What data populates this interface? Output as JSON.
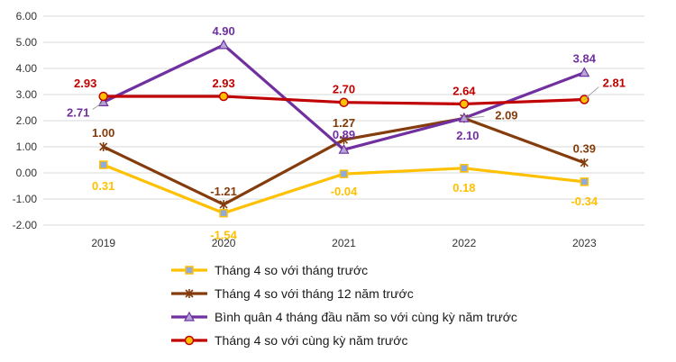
{
  "chart_data": {
    "type": "line",
    "categories": [
      "2019",
      "2020",
      "2021",
      "2022",
      "2023"
    ],
    "ylim": [
      -2,
      6
    ],
    "yticks": [
      "-2.00",
      "-1.00",
      "0.00",
      "1.00",
      "2.00",
      "3.00",
      "4.00",
      "5.00",
      "6.00"
    ],
    "grid": true,
    "legend_position": "bottom",
    "series": [
      {
        "name": "Tháng 4 so với tháng trước",
        "values": [
          0.31,
          -1.54,
          -0.04,
          0.18,
          -0.34
        ],
        "labels": [
          "0.31",
          "-1.54",
          "-0.04",
          "0.18",
          "-0.34"
        ],
        "color": "#FFC000",
        "label_color": "#FFC000",
        "marker": "square"
      },
      {
        "name": "Tháng 4 so với tháng 12 năm trước",
        "values": [
          1.0,
          -1.21,
          1.27,
          2.09,
          0.39
        ],
        "labels": [
          "1.00",
          "-1.21",
          "1.27",
          "2.09",
          "0.39"
        ],
        "color": "#843C0C",
        "label_color": "#843C0C",
        "marker": "star"
      },
      {
        "name": "Bình quân 4 tháng đầu năm so với cùng kỳ năm trước",
        "values": [
          2.71,
          4.9,
          0.89,
          2.1,
          3.84
        ],
        "labels": [
          "2.71",
          "4.90",
          "0.89",
          "2.10",
          "3.84"
        ],
        "color": "#7030A0",
        "label_color": "#7030A0",
        "marker": "triangle"
      },
      {
        "name": "Tháng 4 so với cùng kỳ năm trước",
        "values": [
          2.93,
          2.93,
          2.7,
          2.64,
          2.81
        ],
        "labels": [
          "2.93",
          "2.93",
          "2.70",
          "2.64",
          "2.81"
        ],
        "color": "#C00000",
        "label_color": "#C00000",
        "marker": "circle"
      }
    ]
  }
}
